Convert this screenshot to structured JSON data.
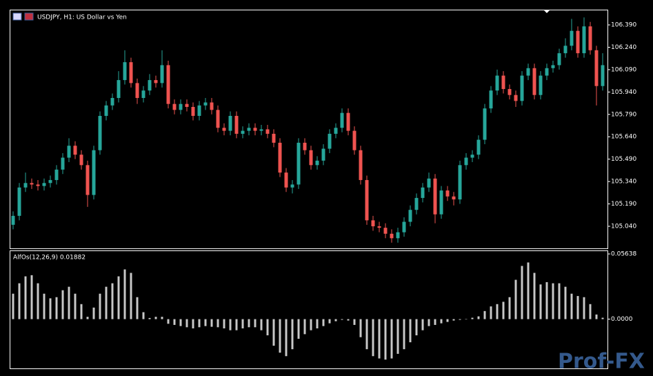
{
  "chart_data": [
    {
      "type": "candlestick",
      "title": "USDJPY, H1:  US Dollar vs Yen",
      "up_color": "#26a69a",
      "down_color": "#ef5350",
      "open": [
        105.05,
        105.11,
        105.3,
        105.33,
        105.32,
        105.31,
        105.33,
        105.35,
        105.42,
        105.5,
        105.58,
        105.52,
        105.45,
        105.25,
        105.55,
        105.78,
        105.85,
        105.9,
        106.02,
        106.14,
        106.0,
        105.9,
        105.95,
        106.02,
        106.0,
        106.12,
        105.86,
        105.82,
        105.86,
        105.84,
        105.78,
        105.85,
        105.87,
        105.82,
        105.7,
        105.68,
        105.78,
        105.66,
        105.68,
        105.7,
        105.68,
        105.69,
        105.66,
        105.6,
        105.4,
        105.3,
        105.32,
        105.6,
        105.55,
        105.45,
        105.48,
        105.56,
        105.66,
        105.7,
        105.8,
        105.68,
        105.55,
        105.35,
        105.08,
        105.04,
        105.03,
        104.99,
        104.96,
        105.0,
        105.07,
        105.15,
        105.23,
        105.3,
        105.36,
        105.12,
        105.28,
        105.24,
        105.22,
        105.45,
        105.5,
        105.52,
        105.62,
        105.83,
        105.95,
        106.05,
        105.96,
        105.92,
        105.88,
        106.05,
        106.1,
        105.92,
        106.05,
        106.1,
        106.12,
        106.2,
        106.25,
        106.35,
        106.2,
        106.38,
        106.22,
        105.98
      ],
      "high": [
        105.14,
        105.33,
        105.4,
        105.36,
        105.35,
        105.36,
        105.38,
        105.45,
        105.53,
        105.63,
        105.61,
        105.55,
        105.48,
        105.58,
        105.81,
        105.88,
        105.93,
        106.08,
        106.22,
        106.17,
        106.03,
        105.98,
        106.06,
        106.05,
        106.22,
        106.15,
        105.89,
        105.89,
        105.89,
        105.87,
        105.88,
        105.9,
        105.9,
        105.85,
        105.73,
        105.81,
        105.81,
        105.71,
        105.73,
        105.73,
        105.72,
        105.72,
        105.69,
        105.63,
        105.43,
        105.35,
        105.63,
        105.63,
        105.58,
        105.51,
        105.59,
        105.69,
        105.73,
        105.83,
        105.83,
        105.71,
        105.58,
        105.38,
        105.11,
        105.07,
        105.06,
        105.02,
        105.03,
        105.1,
        105.18,
        105.26,
        105.33,
        105.4,
        105.39,
        105.31,
        105.31,
        105.27,
        105.48,
        105.53,
        105.55,
        105.65,
        105.86,
        105.98,
        106.09,
        106.08,
        105.99,
        105.95,
        106.08,
        106.13,
        106.13,
        106.08,
        106.13,
        106.15,
        106.23,
        106.3,
        106.43,
        106.38,
        106.44,
        106.41,
        106.25,
        106.2
      ],
      "low": [
        105.02,
        105.08,
        105.27,
        105.29,
        105.28,
        105.28,
        105.3,
        105.32,
        105.39,
        105.47,
        105.49,
        105.42,
        105.17,
        105.22,
        105.52,
        105.75,
        105.82,
        105.87,
        105.99,
        105.97,
        105.86,
        105.87,
        105.92,
        105.97,
        105.97,
        105.83,
        105.79,
        105.79,
        105.81,
        105.75,
        105.75,
        105.82,
        105.79,
        105.67,
        105.65,
        105.65,
        105.63,
        105.63,
        105.65,
        105.65,
        105.65,
        105.63,
        105.57,
        105.37,
        105.27,
        105.26,
        105.29,
        105.52,
        105.42,
        105.42,
        105.45,
        105.53,
        105.63,
        105.67,
        105.65,
        105.52,
        105.32,
        105.05,
        105.01,
        105.0,
        104.96,
        104.93,
        104.93,
        104.97,
        105.04,
        105.12,
        105.2,
        105.27,
        105.06,
        105.09,
        105.21,
        105.18,
        105.19,
        105.42,
        105.47,
        105.49,
        105.59,
        105.8,
        105.92,
        105.93,
        105.89,
        105.84,
        105.85,
        106.02,
        105.89,
        105.89,
        106.02,
        106.07,
        106.09,
        106.17,
        106.22,
        106.17,
        106.17,
        106.19,
        105.85,
        105.95
      ],
      "close": [
        105.11,
        105.3,
        105.33,
        105.32,
        105.31,
        105.33,
        105.35,
        105.42,
        105.5,
        105.58,
        105.52,
        105.45,
        105.25,
        105.55,
        105.78,
        105.85,
        105.9,
        106.02,
        106.14,
        106.0,
        105.9,
        105.95,
        106.02,
        106.0,
        106.12,
        105.86,
        105.82,
        105.86,
        105.84,
        105.78,
        105.85,
        105.87,
        105.82,
        105.7,
        105.68,
        105.78,
        105.66,
        105.68,
        105.7,
        105.68,
        105.69,
        105.66,
        105.6,
        105.4,
        105.3,
        105.32,
        105.6,
        105.55,
        105.45,
        105.48,
        105.56,
        105.66,
        105.7,
        105.8,
        105.68,
        105.55,
        105.35,
        105.08,
        105.04,
        105.03,
        104.99,
        104.96,
        105.0,
        105.07,
        105.15,
        105.23,
        105.3,
        105.36,
        105.12,
        105.28,
        105.24,
        105.22,
        105.45,
        105.5,
        105.52,
        105.62,
        105.83,
        105.95,
        106.05,
        105.96,
        105.92,
        105.88,
        106.05,
        106.1,
        105.92,
        106.05,
        106.1,
        106.12,
        106.2,
        106.25,
        106.35,
        106.2,
        106.38,
        106.22,
        105.98,
        106.12
      ],
      "ylim": [
        104.892,
        106.492
      ],
      "yticks": [
        {
          "value": 105.04,
          "label": "105.040"
        },
        {
          "value": 105.19,
          "label": "105.190"
        },
        {
          "value": 105.34,
          "label": "105.340"
        },
        {
          "value": 105.49,
          "label": "105.490"
        },
        {
          "value": 105.64,
          "label": "105.640"
        },
        {
          "value": 105.79,
          "label": "105.790"
        },
        {
          "value": 105.94,
          "label": "105.940"
        },
        {
          "value": 106.09,
          "label": "106.090"
        },
        {
          "value": 106.24,
          "label": "106.240"
        },
        {
          "value": 106.39,
          "label": "106.390"
        }
      ],
      "watermark": "Prof-FX"
    },
    {
      "type": "bar",
      "title": "AlfOs(12,26,9) 0.01882",
      "color": "#c8c8c8",
      "values": [
        0.022,
        0.031,
        0.037,
        0.038,
        0.031,
        0.022,
        0.018,
        0.019,
        0.025,
        0.028,
        0.022,
        0.013,
        0.002,
        0.01,
        0.022,
        0.028,
        0.031,
        0.037,
        0.043,
        0.04,
        0.019,
        0.006,
        0.001,
        0.002,
        0.002,
        -0.004,
        -0.005,
        -0.006,
        -0.007,
        -0.008,
        -0.007,
        -0.006,
        -0.0066,
        -0.007,
        -0.008,
        -0.0096,
        -0.0096,
        -0.008,
        -0.007,
        -0.007,
        -0.0096,
        -0.014,
        -0.023,
        -0.029,
        -0.032,
        -0.026,
        -0.017,
        -0.013,
        -0.0096,
        -0.008,
        -0.006,
        -0.0036,
        -0.0018,
        -0.0006,
        -0.0012,
        -0.005,
        -0.0156,
        -0.026,
        -0.032,
        -0.034,
        -0.035,
        -0.034,
        -0.03,
        -0.026,
        -0.02,
        -0.014,
        -0.0096,
        -0.006,
        -0.005,
        -0.0036,
        -0.0024,
        -0.0012,
        -0.0006,
        0.0,
        0.0012,
        0.0024,
        0.007,
        0.011,
        0.013,
        0.015,
        0.019,
        0.034,
        0.046,
        0.049,
        0.04,
        0.03,
        0.032,
        0.031,
        0.031,
        0.028,
        0.022,
        0.02,
        0.019,
        0.013,
        0.004,
        0.0012
      ],
      "ylim": [
        -0.0426,
        0.0594
      ],
      "yticks": [
        {
          "value": 0,
          "label": "0.0000"
        },
        {
          "value": 0.05638,
          "label": "0.05638"
        }
      ]
    }
  ]
}
